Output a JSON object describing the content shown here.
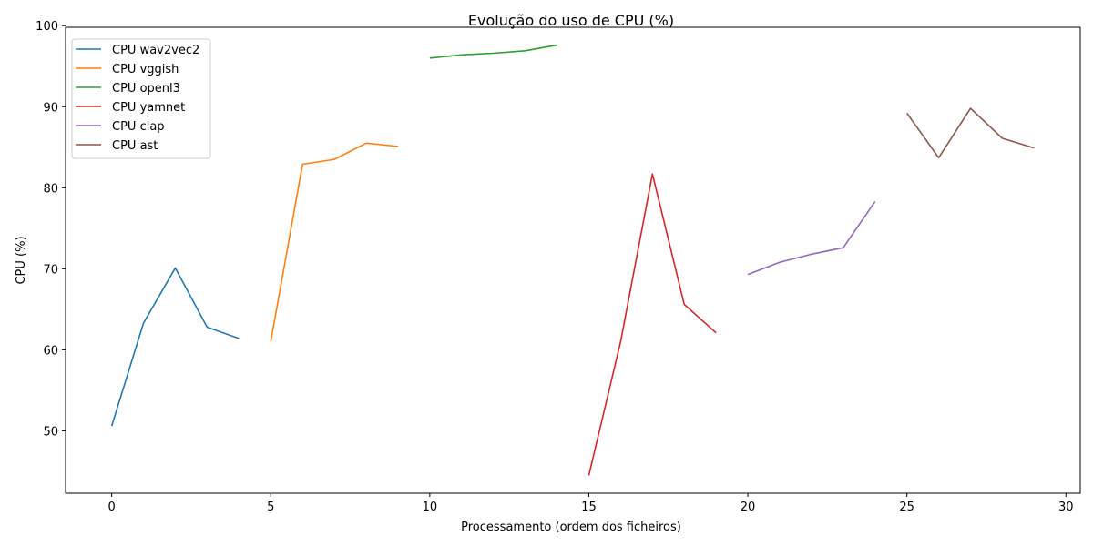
{
  "chart_data": {
    "type": "line",
    "title": "Evolução do uso de CPU (%)",
    "xlabel": "Processamento (ordem dos ficheiros)",
    "ylabel": "CPU (%)",
    "xlim": [
      -1.45,
      30.45
    ],
    "ylim": [
      42.3,
      99.8
    ],
    "xticks": [
      0,
      5,
      10,
      15,
      20,
      25,
      30
    ],
    "yticks": [
      50,
      60,
      70,
      80,
      90,
      100
    ],
    "grid": false,
    "legend_position": "top-left",
    "series": [
      {
        "name": "CPU wav2vec2",
        "color": "#1f77b4",
        "x": [
          0,
          1,
          2,
          3,
          4
        ],
        "y": [
          50.6,
          63.3,
          70.1,
          62.8,
          61.4
        ]
      },
      {
        "name": "CPU vggish",
        "color": "#ff7f0e",
        "x": [
          5,
          6,
          7,
          8,
          9
        ],
        "y": [
          61.0,
          82.9,
          83.5,
          85.5,
          85.1
        ]
      },
      {
        "name": "CPU openl3",
        "color": "#2ca02c",
        "x": [
          10,
          11,
          12,
          13,
          14
        ],
        "y": [
          96.0,
          96.4,
          96.6,
          96.9,
          97.6
        ]
      },
      {
        "name": "CPU yamnet",
        "color": "#d62728",
        "x": [
          15,
          16,
          17,
          18,
          19
        ],
        "y": [
          44.5,
          61.0,
          81.7,
          65.6,
          62.1
        ]
      },
      {
        "name": "CPU clap",
        "color": "#9467bd",
        "x": [
          20,
          21,
          22,
          23,
          24
        ],
        "y": [
          69.3,
          70.8,
          71.8,
          72.6,
          78.3
        ]
      },
      {
        "name": "CPU ast",
        "color": "#8c564b",
        "x": [
          25,
          26,
          27,
          28,
          29
        ],
        "y": [
          89.2,
          83.7,
          89.8,
          86.1,
          84.9
        ]
      }
    ]
  }
}
